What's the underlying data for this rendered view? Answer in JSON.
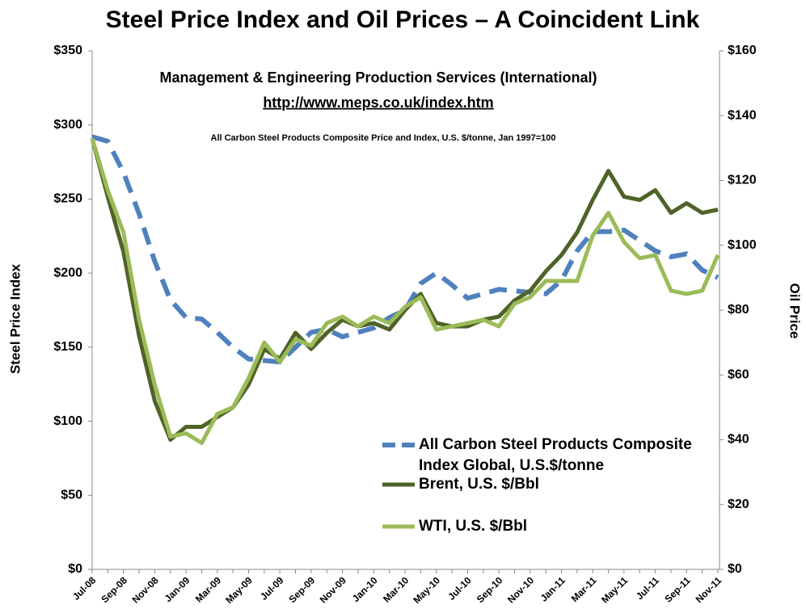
{
  "chart_data": {
    "type": "line",
    "title": "Steel Price Index and Oil Prices – A Coincident Link",
    "subtitle": "Management & Engineering Production Services (International)",
    "link": "http://www.meps.co.uk/index.htm",
    "note": "All Carbon Steel Products Composite Price and Index, U.S. $/tonne, Jan 1997=100",
    "ylabel": "Steel Price Index",
    "y2label": "Oil Price",
    "categories": [
      "Jul-08",
      null,
      "Sep-08",
      null,
      "Nov-08",
      null,
      "Jan-09",
      null,
      "Mar-09",
      null,
      "May-09",
      null,
      "Jul-09",
      null,
      "Sep-09",
      null,
      "Nov-09",
      null,
      "Jan-10",
      null,
      "Mar-10",
      null,
      "May-10",
      null,
      "Jul-10",
      null,
      "Sep-10",
      null,
      "Nov-10",
      null,
      "Jan-11",
      null,
      "Mar-11",
      null,
      "May-11",
      null,
      "Jul-11",
      null,
      "Sep-11",
      null,
      "Nov-11"
    ],
    "ylim": [
      0,
      350
    ],
    "yticks": [
      {
        "value": 0,
        "label": "$0"
      },
      {
        "value": 50,
        "label": "$50"
      },
      {
        "value": 100,
        "label": "$100"
      },
      {
        "value": 150,
        "label": "$150"
      },
      {
        "value": 200,
        "label": "$200"
      },
      {
        "value": 250,
        "label": "$250"
      },
      {
        "value": 300,
        "label": "$300"
      },
      {
        "value": 350,
        "label": "$350"
      }
    ],
    "y2lim": [
      0,
      160
    ],
    "y2ticks": [
      {
        "value": 0,
        "label": "$0"
      },
      {
        "value": 20,
        "label": "$20"
      },
      {
        "value": 40,
        "label": "$40"
      },
      {
        "value": 60,
        "label": "$60"
      },
      {
        "value": 80,
        "label": "$80"
      },
      {
        "value": 100,
        "label": "$100"
      },
      {
        "value": 120,
        "label": "$120"
      },
      {
        "value": 140,
        "label": "$140"
      },
      {
        "value": 160,
        "label": "$160"
      }
    ],
    "grid": false,
    "series": [
      {
        "name": "All Carbon Steel Products Composite Index Global, U.S.$/tonne",
        "color": "#4f81bd",
        "dashed": true,
        "values": [
          292,
          289,
          268,
          240,
          208,
          182,
          170,
          169,
          160,
          150,
          142,
          141,
          140,
          150,
          160,
          162,
          157,
          160,
          163,
          170,
          175,
          193,
          200,
          192,
          183,
          186,
          189,
          188,
          187,
          186,
          195,
          215,
          228,
          228,
          229,
          222,
          215,
          211,
          213,
          202,
          197
        ]
      },
      {
        "name": "Brent, U.S. $/Bbl",
        "color": "#4f6228",
        "axis": "y2",
        "values": [
          133,
          115,
          98,
          72,
          52,
          40,
          44,
          44,
          47,
          50,
          57,
          68,
          65,
          73,
          68,
          73,
          77,
          75,
          76,
          74,
          80,
          85,
          76,
          75,
          75,
          77,
          78,
          83,
          86,
          92,
          97,
          104,
          114,
          123,
          115,
          114,
          117,
          110,
          113,
          110,
          111
        ]
      },
      {
        "name": "WTI, U.S. $/Bbl",
        "color": "#9bbb59",
        "axis": "y2",
        "values": [
          133,
          117,
          104,
          77,
          57,
          41,
          42,
          39,
          48,
          50,
          59,
          70,
          64,
          71,
          69,
          76,
          78,
          75,
          78,
          76,
          81,
          84,
          74,
          75,
          76,
          77,
          75,
          82,
          84,
          89,
          89,
          89,
          103,
          110,
          101,
          96,
          97,
          86,
          85,
          86,
          97
        ]
      }
    ]
  }
}
